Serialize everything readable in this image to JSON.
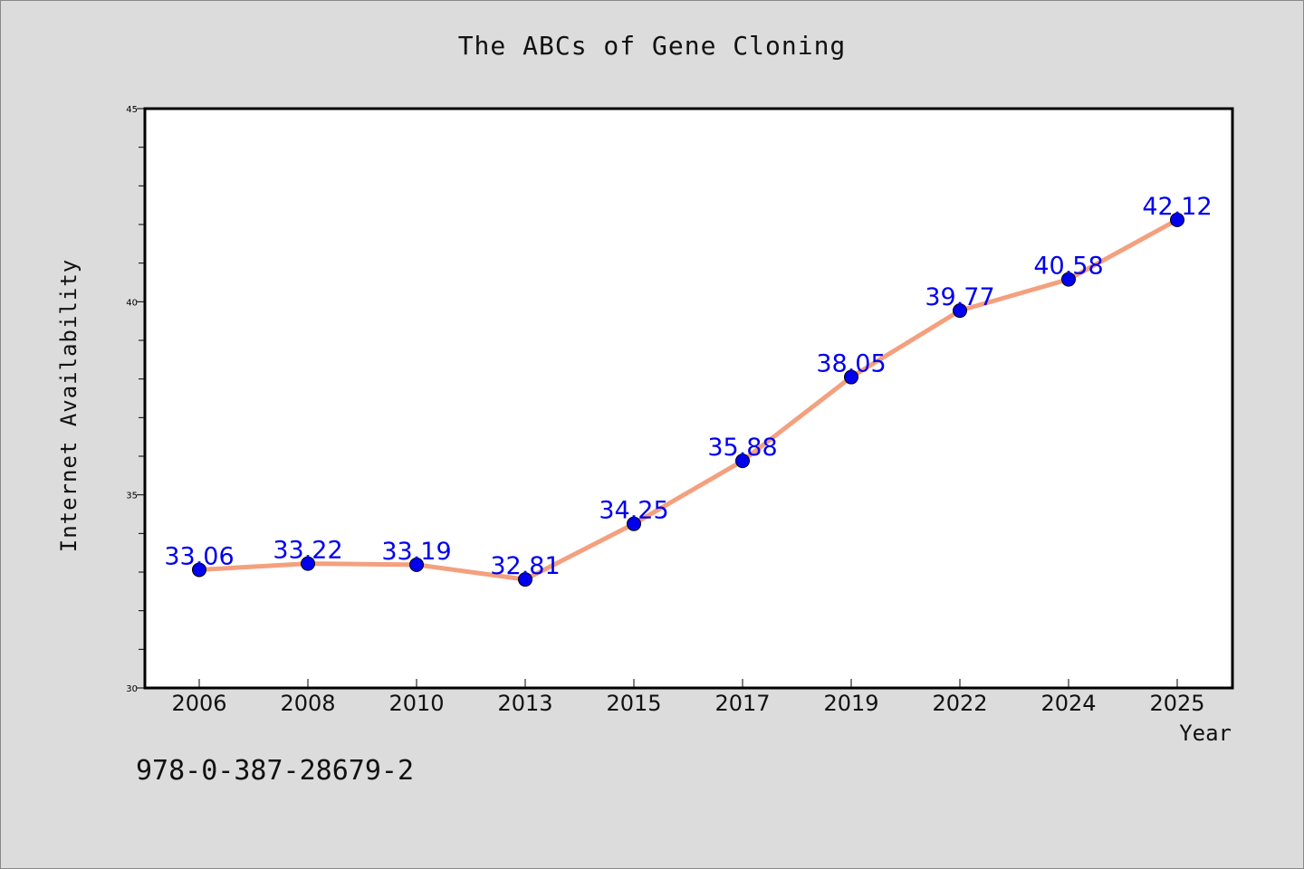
{
  "isbn": "978-0-387-28679-2",
  "colors": {
    "background": "#dcdcdc",
    "plot_background": "#ffffff",
    "line": "#f4a07e",
    "marker": "#0000ee",
    "data_label": "#0000ee"
  },
  "chart_data": {
    "type": "line",
    "title": "The ABCs of Gene Cloning",
    "xlabel": "Year",
    "ylabel": "Internet Availability",
    "categories": [
      "2006",
      "2008",
      "2010",
      "2013",
      "2015",
      "2017",
      "2019",
      "2022",
      "2024",
      "2025"
    ],
    "series": [
      {
        "values": [
          33.06,
          33.22,
          33.19,
          32.81,
          34.25,
          35.88,
          38.05,
          39.77,
          40.58,
          42.12
        ],
        "labels": [
          "33.06",
          "33.22",
          "33.19",
          "32.81",
          "34.25",
          "35.88",
          "38.05",
          "39.77",
          "40.58",
          "42.12"
        ]
      }
    ],
    "ylim": [
      30,
      45
    ],
    "yticks": [
      "30",
      "35",
      "40",
      "45"
    ],
    "grid": false,
    "legend": "none"
  }
}
